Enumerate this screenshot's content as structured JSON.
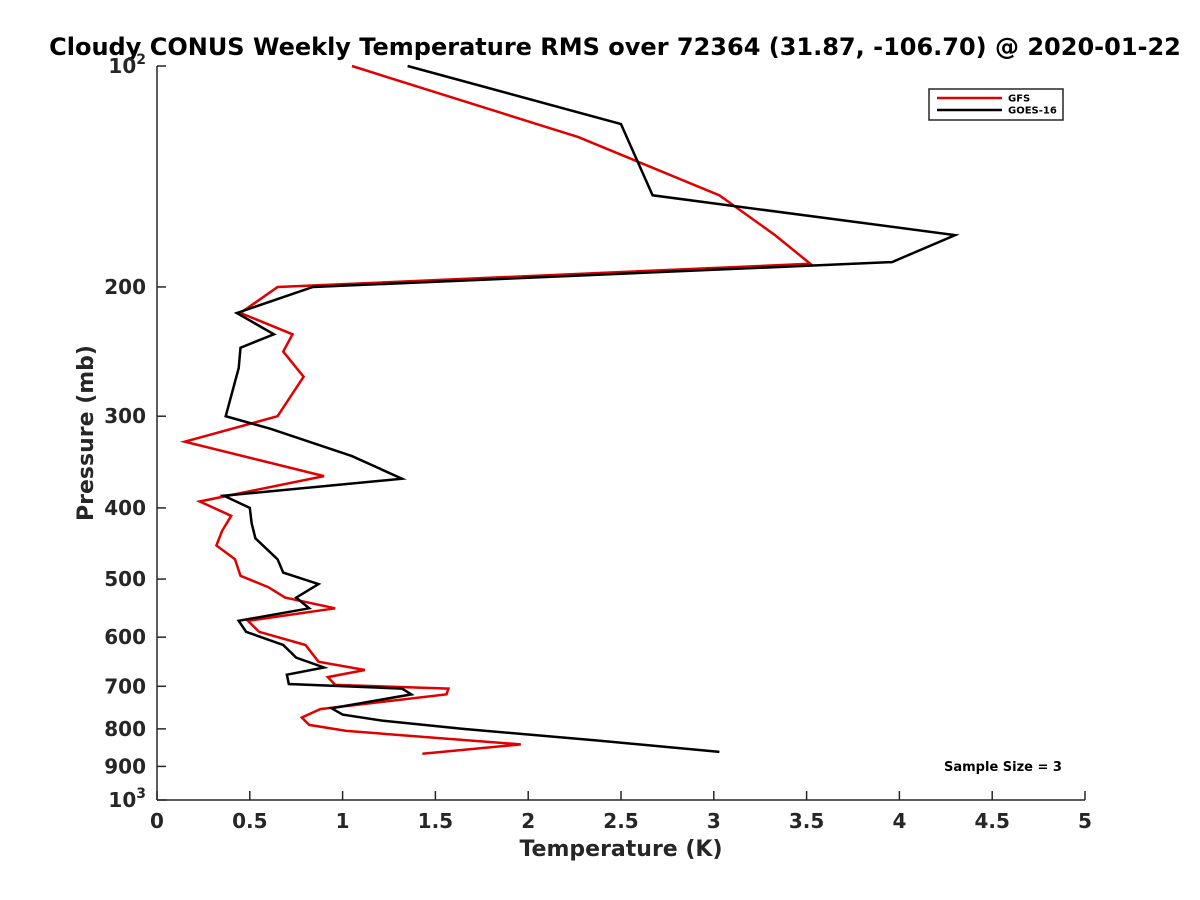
{
  "chart_data": {
    "type": "line",
    "title": "Cloudy CONUS Weekly Temperature RMS over 72364 (31.87, -106.70) @ 2020-01-22",
    "xlabel": "Temperature (K)",
    "ylabel": "Pressure (mb)",
    "xlim": [
      0,
      5
    ],
    "ylim": [
      100,
      1000
    ],
    "yscale": "log",
    "y_reversed": true,
    "xticks": [
      0,
      0.5,
      1,
      1.5,
      2,
      2.5,
      3,
      3.5,
      4,
      4.5,
      5
    ],
    "xtick_labels": [
      "0",
      "0.5",
      "1",
      "1.5",
      "2",
      "2.5",
      "3",
      "3.5",
      "4",
      "4.5",
      "5"
    ],
    "yticks": [
      100,
      200,
      300,
      400,
      500,
      600,
      700,
      800,
      900,
      1000
    ],
    "ytick_labels": [
      {
        "base": "10",
        "exp": "2"
      },
      {
        "base": "200",
        "exp": ""
      },
      {
        "base": "300",
        "exp": ""
      },
      {
        "base": "400",
        "exp": ""
      },
      {
        "base": "500",
        "exp": ""
      },
      {
        "base": "600",
        "exp": ""
      },
      {
        "base": "700",
        "exp": ""
      },
      {
        "base": "800",
        "exp": ""
      },
      {
        "base": "900",
        "exp": ""
      },
      {
        "base": "10",
        "exp": "3"
      }
    ],
    "grid": false,
    "legend_position": "top-right",
    "annotation": "Sample Size = 3",
    "series": [
      {
        "name": "GFS",
        "color": "#e00000",
        "points": [
          [
            1.05,
            100
          ],
          [
            2.27,
            125
          ],
          [
            3.03,
            150
          ],
          [
            3.33,
            170
          ],
          [
            3.52,
            186
          ],
          [
            0.65,
            200
          ],
          [
            0.45,
            217
          ],
          [
            0.73,
            232
          ],
          [
            0.68,
            245
          ],
          [
            0.79,
            265
          ],
          [
            0.65,
            300
          ],
          [
            0.15,
            325
          ],
          [
            0.9,
            362
          ],
          [
            0.23,
            392
          ],
          [
            0.4,
            410
          ],
          [
            0.35,
            430
          ],
          [
            0.32,
            450
          ],
          [
            0.42,
            470
          ],
          [
            0.45,
            495
          ],
          [
            0.6,
            513
          ],
          [
            0.69,
            530
          ],
          [
            0.96,
            548
          ],
          [
            0.49,
            570
          ],
          [
            0.55,
            590
          ],
          [
            0.8,
            615
          ],
          [
            0.87,
            648
          ],
          [
            1.12,
            665
          ],
          [
            0.92,
            680
          ],
          [
            0.96,
            697
          ],
          [
            1.57,
            705
          ],
          [
            1.56,
            718
          ],
          [
            0.88,
            752
          ],
          [
            0.78,
            772
          ],
          [
            0.82,
            790
          ],
          [
            1.02,
            805
          ],
          [
            1.96,
            840
          ],
          [
            1.43,
            865
          ]
        ]
      },
      {
        "name": "GOES-16",
        "color": "#000000",
        "points": [
          [
            1.35,
            100
          ],
          [
            2.5,
            120
          ],
          [
            2.67,
            150
          ],
          [
            4.3,
            170
          ],
          [
            3.96,
            185
          ],
          [
            0.84,
            200
          ],
          [
            0.43,
            217
          ],
          [
            0.63,
            232
          ],
          [
            0.45,
            242
          ],
          [
            0.44,
            258
          ],
          [
            0.37,
            300
          ],
          [
            0.61,
            312
          ],
          [
            1.05,
            340
          ],
          [
            1.32,
            365
          ],
          [
            0.36,
            385
          ],
          [
            0.5,
            400
          ],
          [
            0.51,
            420
          ],
          [
            0.53,
            440
          ],
          [
            0.65,
            470
          ],
          [
            0.68,
            490
          ],
          [
            0.87,
            508
          ],
          [
            0.75,
            530
          ],
          [
            0.82,
            548
          ],
          [
            0.44,
            570
          ],
          [
            0.48,
            590
          ],
          [
            0.68,
            615
          ],
          [
            0.75,
            640
          ],
          [
            0.9,
            660
          ],
          [
            0.7,
            675
          ],
          [
            0.71,
            695
          ],
          [
            1.32,
            705
          ],
          [
            1.37,
            718
          ],
          [
            0.94,
            750
          ],
          [
            1.0,
            765
          ],
          [
            1.22,
            780
          ],
          [
            1.65,
            800
          ],
          [
            2.38,
            830
          ],
          [
            3.03,
            860
          ]
        ]
      }
    ]
  }
}
